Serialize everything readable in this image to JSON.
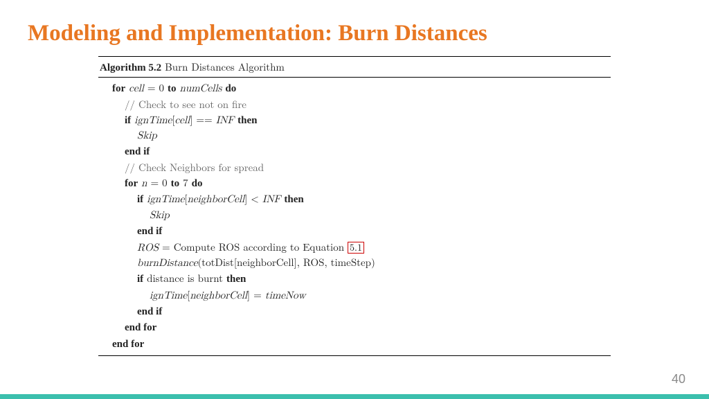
{
  "slide": {
    "title": "Modeling and Implementation: Burn Distances",
    "page_number": "40",
    "colors": {
      "title": "#e87722",
      "stripe": "#3bbfad",
      "page_num": "#8a8a8a",
      "ref_border": "#cc0000",
      "text": "#222222"
    }
  },
  "algorithm": {
    "label": "Algorithm 5.2",
    "name": "Burn Distances Algorithm",
    "ref": "5.1",
    "kw": {
      "for": "for",
      "to": "to",
      "do": "do",
      "if": "if",
      "then": "then",
      "endif": "end if",
      "endfor": "end for"
    },
    "lines": {
      "l1_a": "cell",
      "l1_eq": " = 0 ",
      "l1_b": "numCells",
      "l2": "// Check to see not on fire",
      "l3_a": "ignTime",
      "l3_b": "[",
      "l3_c": "cell",
      "l3_d": "] == ",
      "l3_e": "INF",
      "l4": "Skip",
      "l6": "// Check Neighbors for spread",
      "l7_a": "n",
      "l7_eq": " = 0 ",
      "l7_b": "7",
      "l8_a": "ignTime",
      "l8_b": "[",
      "l8_c": "neighborCell",
      "l8_d": "] < ",
      "l8_e": "INF",
      "l9": "Skip",
      "l11_a": "ROS",
      "l11_b": " = Compute ROS according to Equation ",
      "l12_a": "burnDistance",
      "l12_b": "(totDist[neighborCell], ROS, timeStep)",
      "l13": "distance is burnt",
      "l14_a": "ignTime",
      "l14_b": "[",
      "l14_c": "neighborCell",
      "l14_d": "] = ",
      "l14_e": "timeNow"
    }
  }
}
